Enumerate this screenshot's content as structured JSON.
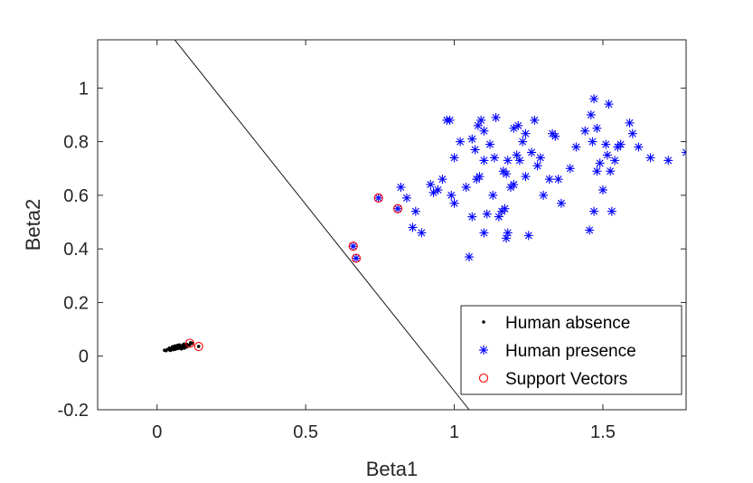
{
  "chart_data": {
    "type": "scatter",
    "xlabel": "Beta1",
    "ylabel": "Beta2",
    "xlim": [
      -0.2,
      1.78
    ],
    "ylim": [
      -0.2,
      1.18
    ],
    "xticks": [
      0,
      0.5,
      1,
      1.5
    ],
    "xtick_labels": [
      "0",
      "0.5",
      "1",
      "1.5"
    ],
    "yticks": [
      -0.2,
      0,
      0.2,
      0.4,
      0.6,
      0.8,
      1
    ],
    "ytick_labels": [
      "-0.2",
      "0",
      "0.2",
      "0.4",
      "0.6",
      "0.8",
      "1"
    ],
    "grid": false,
    "legend_position": "bottom-right",
    "series": [
      {
        "name": "Human absence",
        "marker": "dot",
        "color": "#000000",
        "points": [
          [
            0.025,
            0.022
          ],
          [
            0.03,
            0.02
          ],
          [
            0.035,
            0.025
          ],
          [
            0.04,
            0.024
          ],
          [
            0.042,
            0.03
          ],
          [
            0.045,
            0.021
          ],
          [
            0.05,
            0.028
          ],
          [
            0.052,
            0.035
          ],
          [
            0.055,
            0.024
          ],
          [
            0.058,
            0.03
          ],
          [
            0.06,
            0.038
          ],
          [
            0.062,
            0.026
          ],
          [
            0.065,
            0.032
          ],
          [
            0.068,
            0.04
          ],
          [
            0.07,
            0.028
          ],
          [
            0.072,
            0.034
          ],
          [
            0.075,
            0.042
          ],
          [
            0.078,
            0.03
          ],
          [
            0.08,
            0.036
          ],
          [
            0.082,
            0.027
          ],
          [
            0.085,
            0.04
          ],
          [
            0.088,
            0.033
          ],
          [
            0.09,
            0.045
          ],
          [
            0.092,
            0.03
          ],
          [
            0.095,
            0.038
          ],
          [
            0.098,
            0.034
          ],
          [
            0.1,
            0.044
          ],
          [
            0.102,
            0.036
          ],
          [
            0.105,
            0.04
          ],
          [
            0.11,
            0.042
          ],
          [
            0.113,
            0.05
          ],
          [
            0.118,
            0.048
          ],
          [
            0.14,
            0.036
          ]
        ]
      },
      {
        "name": "Human presence",
        "marker": "asterisk",
        "color": "#0000ff",
        "points": [
          [
            0.66,
            0.41
          ],
          [
            0.67,
            0.365
          ],
          [
            0.745,
            0.59
          ],
          [
            0.81,
            0.55
          ],
          [
            0.82,
            0.63
          ],
          [
            0.84,
            0.59
          ],
          [
            0.87,
            0.54
          ],
          [
            0.86,
            0.48
          ],
          [
            0.89,
            0.46
          ],
          [
            0.92,
            0.64
          ],
          [
            0.93,
            0.61
          ],
          [
            0.945,
            0.62
          ],
          [
            0.96,
            0.66
          ],
          [
            0.975,
            0.88
          ],
          [
            0.985,
            0.88
          ],
          [
            0.99,
            0.6
          ],
          [
            1.0,
            0.74
          ],
          [
            1.0,
            0.57
          ],
          [
            1.02,
            0.8
          ],
          [
            1.04,
            0.63
          ],
          [
            1.05,
            0.37
          ],
          [
            1.06,
            0.52
          ],
          [
            1.06,
            0.81
          ],
          [
            1.07,
            0.77
          ],
          [
            1.075,
            0.66
          ],
          [
            1.08,
            0.86
          ],
          [
            1.085,
            0.67
          ],
          [
            1.09,
            0.88
          ],
          [
            1.1,
            0.84
          ],
          [
            1.1,
            0.73
          ],
          [
            1.1,
            0.46
          ],
          [
            1.11,
            0.53
          ],
          [
            1.12,
            0.79
          ],
          [
            1.13,
            0.6
          ],
          [
            1.135,
            0.74
          ],
          [
            1.14,
            0.89
          ],
          [
            1.15,
            0.52
          ],
          [
            1.16,
            0.54
          ],
          [
            1.165,
            0.69
          ],
          [
            1.17,
            0.55
          ],
          [
            1.175,
            0.68
          ],
          [
            1.175,
            0.44
          ],
          [
            1.18,
            0.46
          ],
          [
            1.18,
            0.73
          ],
          [
            1.19,
            0.63
          ],
          [
            1.2,
            0.85
          ],
          [
            1.2,
            0.64
          ],
          [
            1.21,
            0.75
          ],
          [
            1.215,
            0.86
          ],
          [
            1.22,
            0.73
          ],
          [
            1.23,
            0.8
          ],
          [
            1.24,
            0.67
          ],
          [
            1.24,
            0.83
          ],
          [
            1.25,
            0.45
          ],
          [
            1.26,
            0.76
          ],
          [
            1.27,
            0.88
          ],
          [
            1.28,
            0.71
          ],
          [
            1.29,
            0.74
          ],
          [
            1.3,
            0.6
          ],
          [
            1.32,
            0.66
          ],
          [
            1.33,
            0.83
          ],
          [
            1.34,
            0.82
          ],
          [
            1.35,
            0.66
          ],
          [
            1.36,
            0.57
          ],
          [
            1.39,
            0.7
          ],
          [
            1.41,
            0.78
          ],
          [
            1.44,
            0.84
          ],
          [
            1.455,
            0.47
          ],
          [
            1.46,
            0.9
          ],
          [
            1.465,
            0.8
          ],
          [
            1.47,
            0.96
          ],
          [
            1.47,
            0.54
          ],
          [
            1.48,
            0.85
          ],
          [
            1.48,
            0.69
          ],
          [
            1.49,
            0.72
          ],
          [
            1.5,
            0.62
          ],
          [
            1.51,
            0.79
          ],
          [
            1.515,
            0.75
          ],
          [
            1.52,
            0.94
          ],
          [
            1.525,
            0.69
          ],
          [
            1.53,
            0.54
          ],
          [
            1.54,
            0.73
          ],
          [
            1.55,
            0.78
          ],
          [
            1.56,
            0.79
          ],
          [
            1.59,
            0.87
          ],
          [
            1.6,
            0.83
          ],
          [
            1.62,
            0.78
          ],
          [
            1.66,
            0.74
          ],
          [
            1.72,
            0.73
          ],
          [
            1.78,
            0.76
          ]
        ]
      },
      {
        "name": "Support Vectors",
        "marker": "circle",
        "color": "#ff0000",
        "points": [
          [
            0.11,
            0.048
          ],
          [
            0.14,
            0.036
          ],
          [
            0.66,
            0.41
          ],
          [
            0.67,
            0.365
          ],
          [
            0.745,
            0.59
          ],
          [
            0.81,
            0.55
          ]
        ]
      }
    ],
    "decision_boundary": {
      "points": [
        [
          0.045,
          1.2
        ],
        [
          1.05,
          -0.2
        ]
      ],
      "color": "#000000"
    }
  }
}
